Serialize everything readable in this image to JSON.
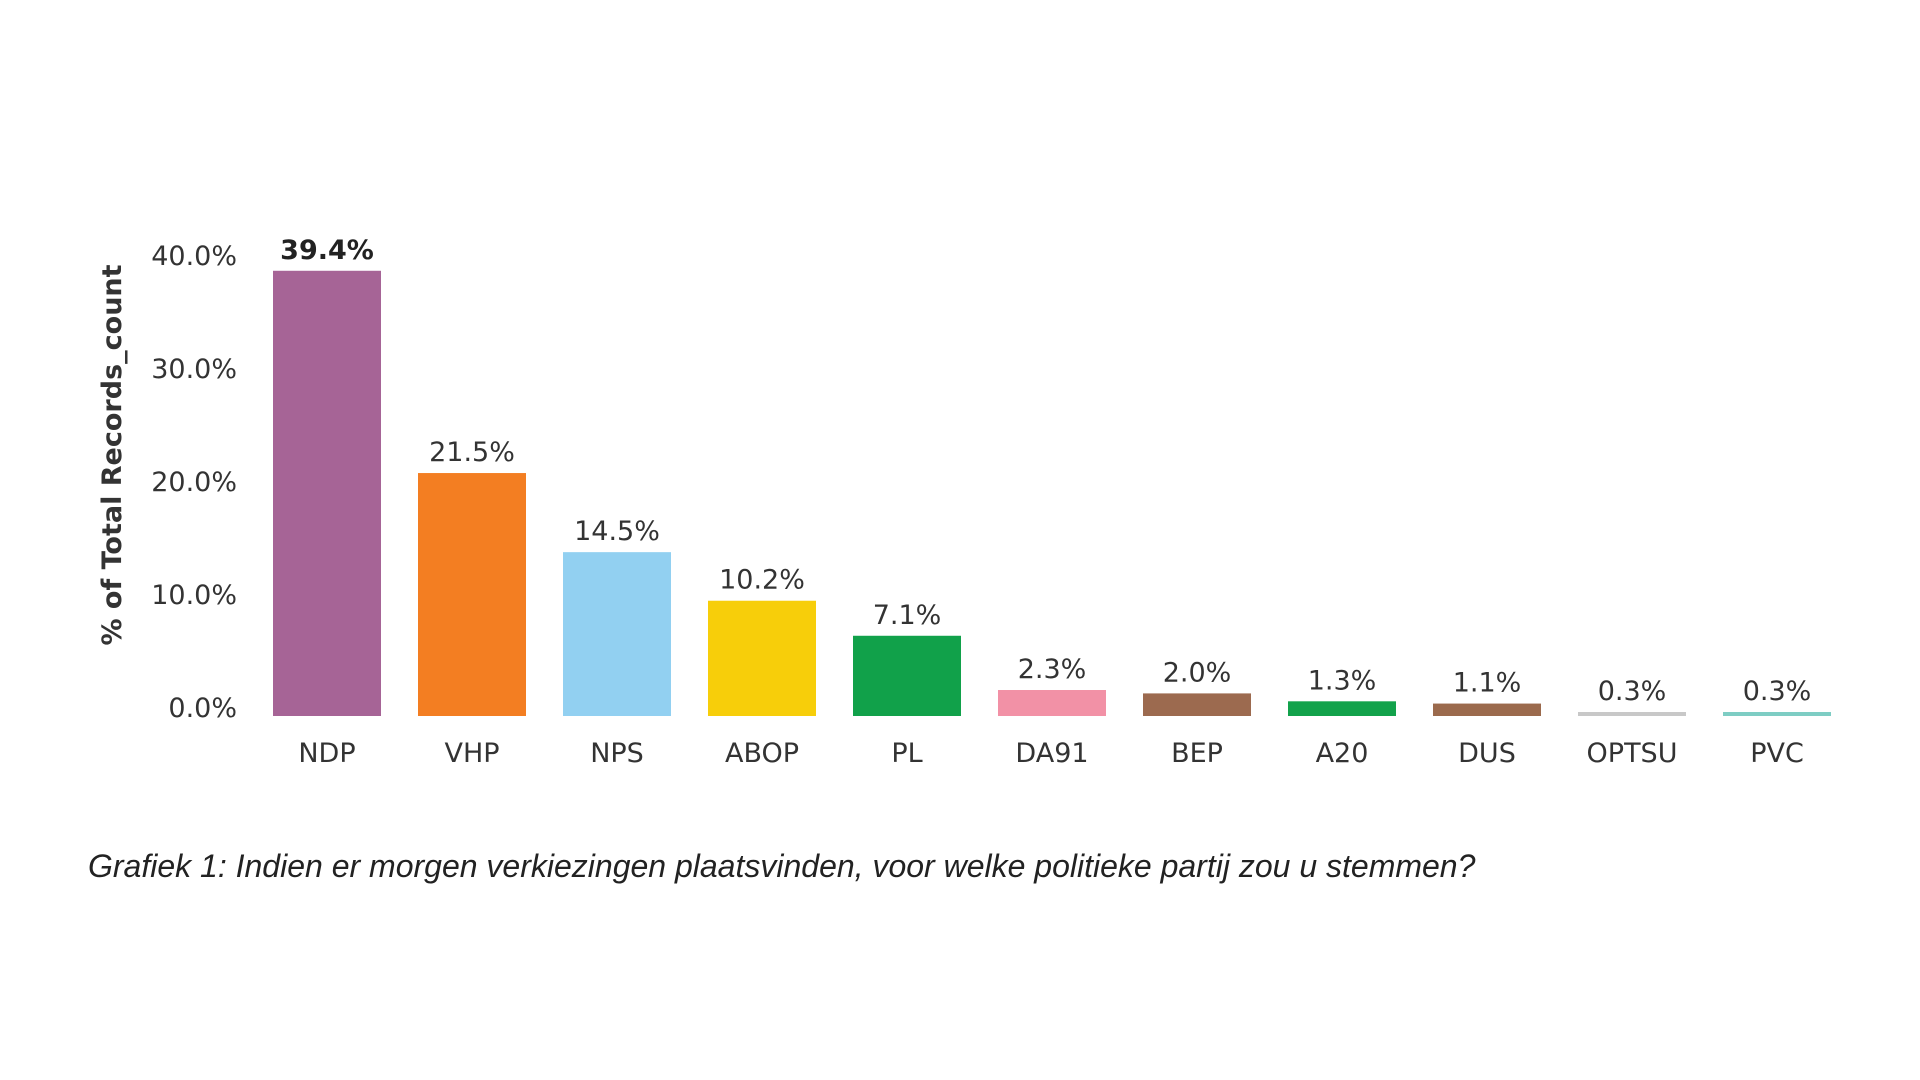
{
  "chart_data": {
    "type": "bar",
    "ylabel": "% of Total Records_count",
    "ylim": [
      0,
      40
    ],
    "yticks": [
      "0.0%",
      "10.0%",
      "20.0%",
      "30.0%",
      "40.0%"
    ],
    "ytick_values": [
      0,
      10,
      20,
      30,
      40
    ],
    "grid": false,
    "legend": "none",
    "categories": [
      "NDP",
      "VHP",
      "NPS",
      "ABOP",
      "PL",
      "DA91",
      "BEP",
      "A20",
      "DUS",
      "OPTSU",
      "PVC"
    ],
    "values": [
      39.4,
      21.5,
      14.5,
      10.2,
      7.1,
      2.3,
      2.0,
      1.3,
      1.1,
      0.3,
      0.3
    ],
    "data_labels": [
      "39.4%",
      "21.5%",
      "14.5%",
      "10.2%",
      "7.1%",
      "2.3%",
      "2.0%",
      "1.3%",
      "1.1%",
      "0.3%",
      "0.3%"
    ],
    "colors": [
      "#a66496",
      "#f37e22",
      "#92d0f1",
      "#f7ce0a",
      "#11a14a",
      "#f291a6",
      "#9c6a4f",
      "#12a24b",
      "#9b6a4d",
      "#c8c8c8",
      "#7ecdc4"
    ],
    "highlight_index": 0
  },
  "caption": "Grafiek 1: Indien er morgen verkiezingen plaatsvinden, voor welke politieke partij zou u stemmen?"
}
